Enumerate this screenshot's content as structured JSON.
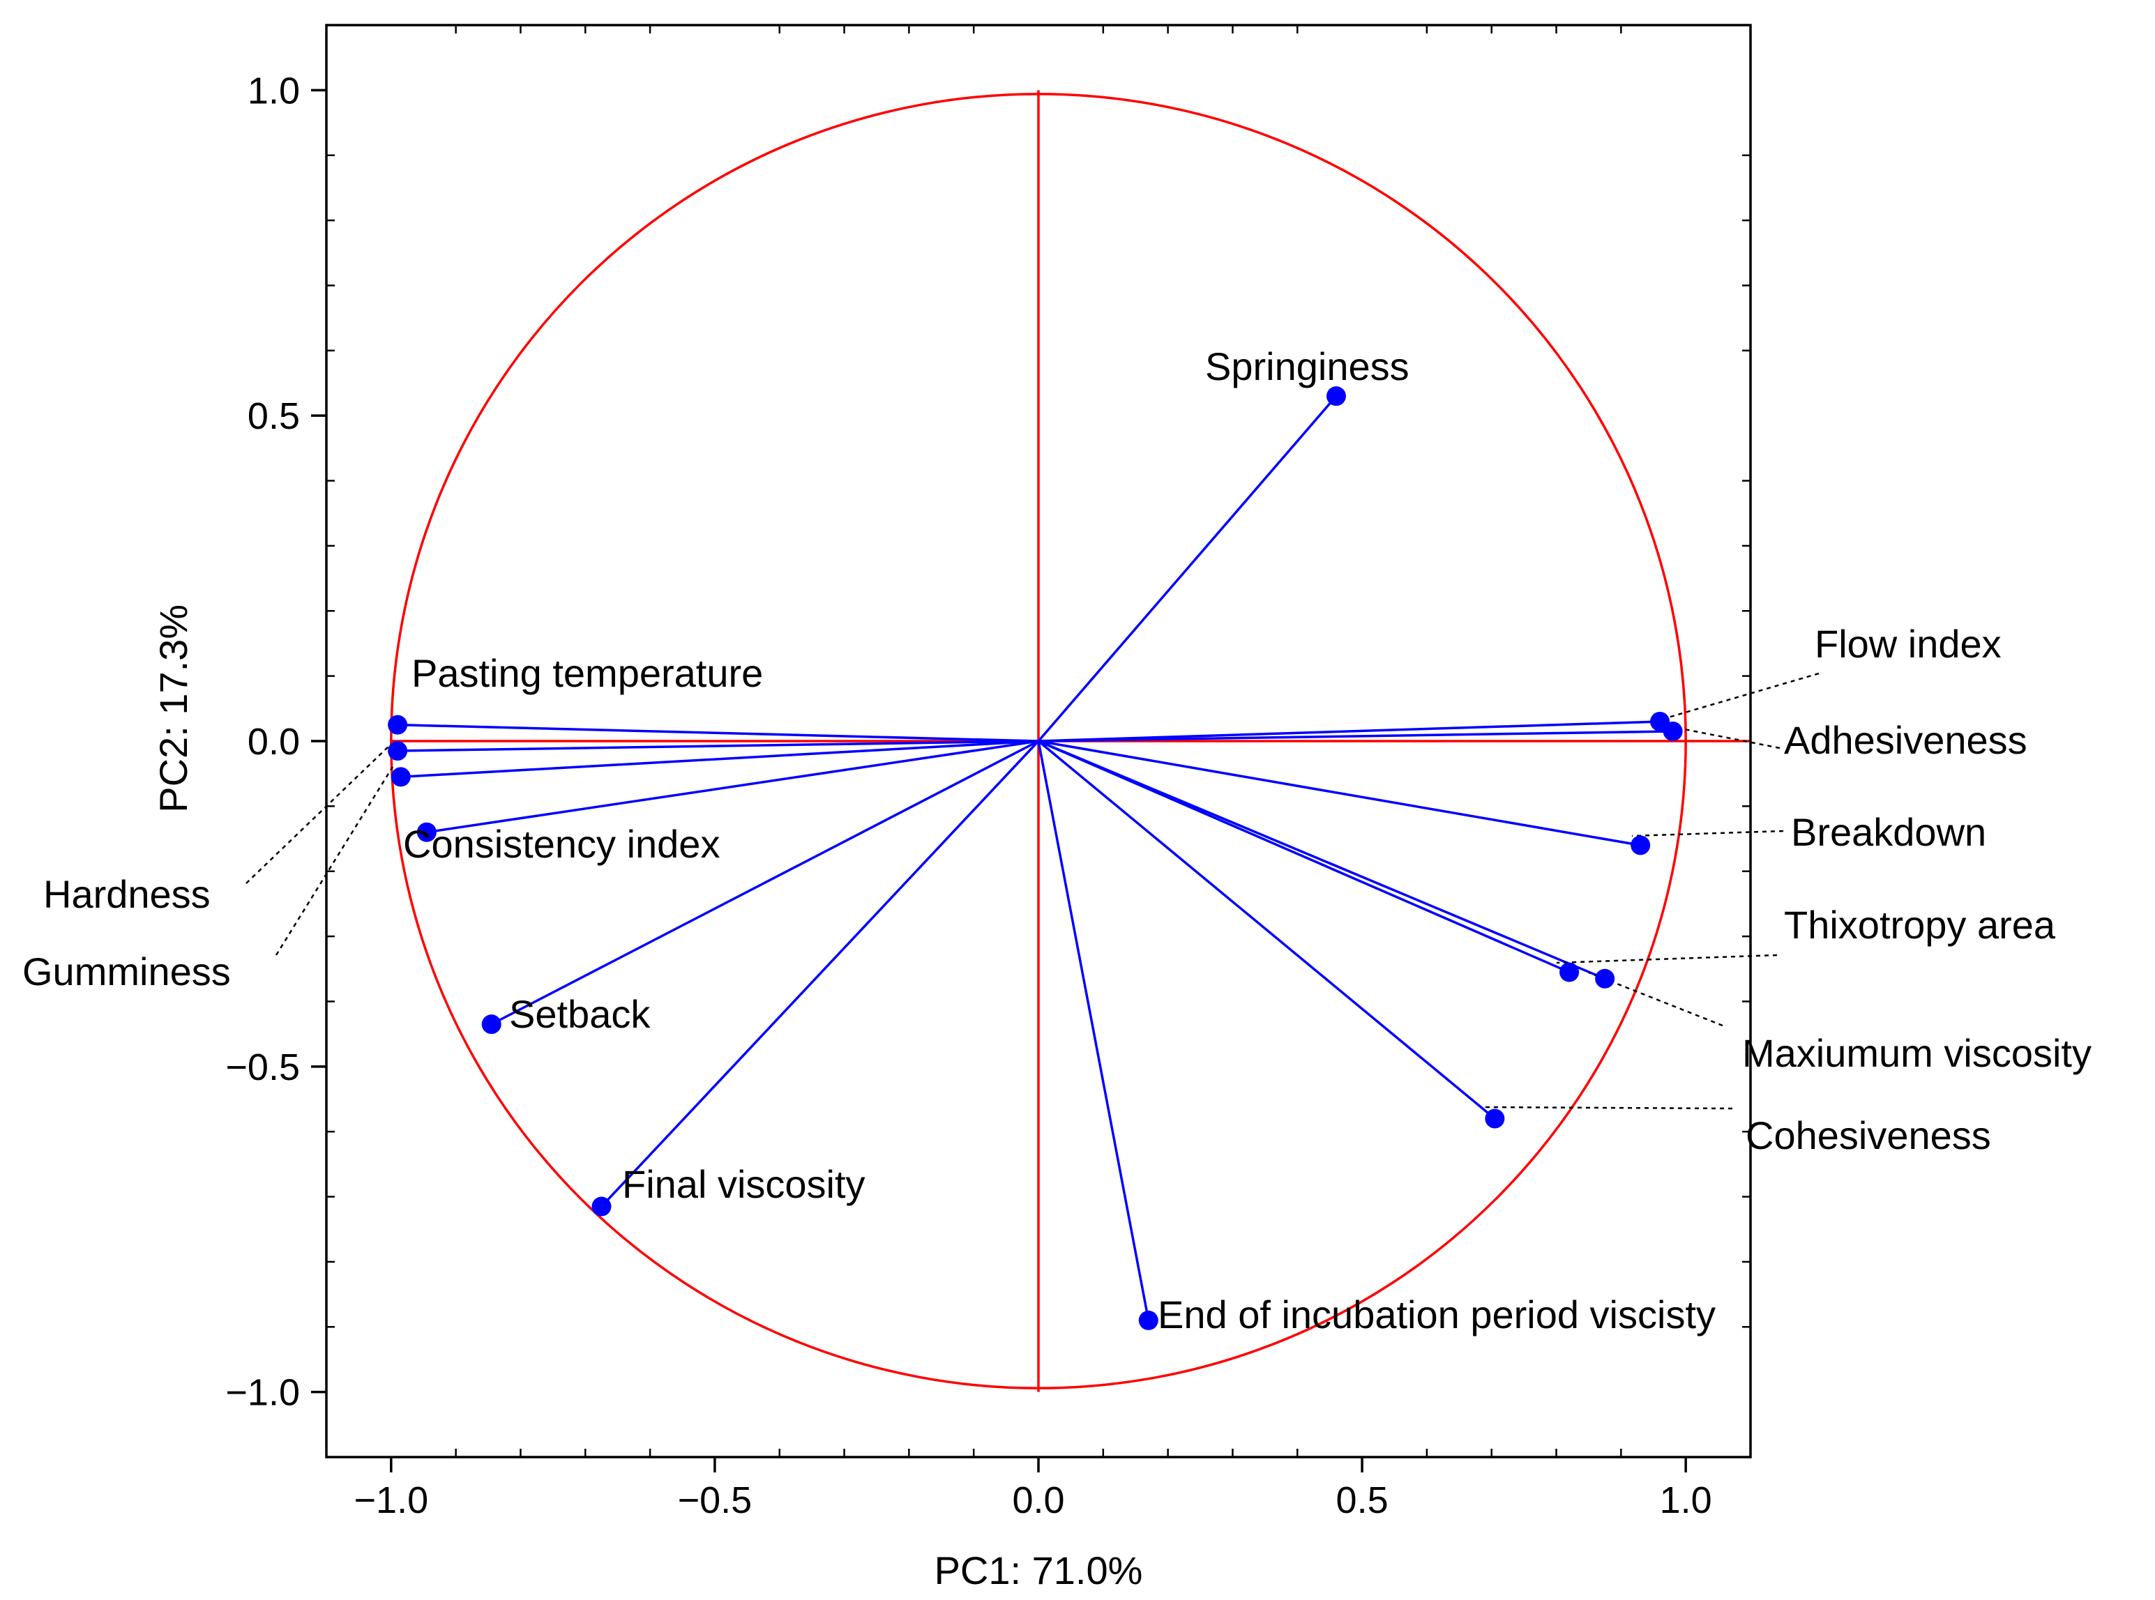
{
  "chart_data": {
    "type": "scatter",
    "subtype": "pca-correlation-circle",
    "title": "",
    "xlabel": "PC1: 71.0%",
    "ylabel": "PC2: 17.3%",
    "xlim": [
      -1.1,
      1.1
    ],
    "ylim": [
      -1.1,
      1.1
    ],
    "xticks": [
      -1.0,
      -0.5,
      0.0,
      0.5,
      1.0
    ],
    "yticks": [
      -1.0,
      -0.5,
      0.0,
      0.5,
      1.0
    ],
    "xtick_labels": [
      "−1.0",
      "−0.5",
      "0.0",
      "0.5",
      "1.0"
    ],
    "ytick_labels": [
      "−1.0",
      "−0.5",
      "0.0",
      "0.5",
      "1.0"
    ],
    "unit_circle_color": "#ff0000",
    "vector_color": "#0000ff",
    "leader_line_color": "#000000",
    "variables": [
      {
        "name": "Springiness",
        "x": 0.46,
        "y": 0.53
      },
      {
        "name": "Flow index",
        "x": 0.96,
        "y": 0.03
      },
      {
        "name": "Adhesiveness",
        "x": 0.98,
        "y": 0.015
      },
      {
        "name": "Breakdown",
        "x": 0.93,
        "y": -0.16
      },
      {
        "name": "Thixotropy area",
        "x": 0.82,
        "y": -0.355
      },
      {
        "name": "Maxiumum viscosity",
        "x": 0.875,
        "y": -0.365
      },
      {
        "name": "Cohesiveness",
        "x": 0.705,
        "y": -0.58
      },
      {
        "name": "End of incubation period viscisty",
        "x": 0.17,
        "y": -0.89
      },
      {
        "name": "Final viscosity",
        "x": -0.675,
        "y": -0.715
      },
      {
        "name": "Setback",
        "x": -0.845,
        "y": -0.435
      },
      {
        "name": "Consistency index",
        "x": -0.945,
        "y": -0.14
      },
      {
        "name": "Pasting temperature",
        "x": -0.99,
        "y": 0.025
      },
      {
        "name": "Hardness",
        "x": -0.99,
        "y": -0.015
      },
      {
        "name": "Gumminess",
        "x": -0.985,
        "y": -0.055
      }
    ]
  }
}
